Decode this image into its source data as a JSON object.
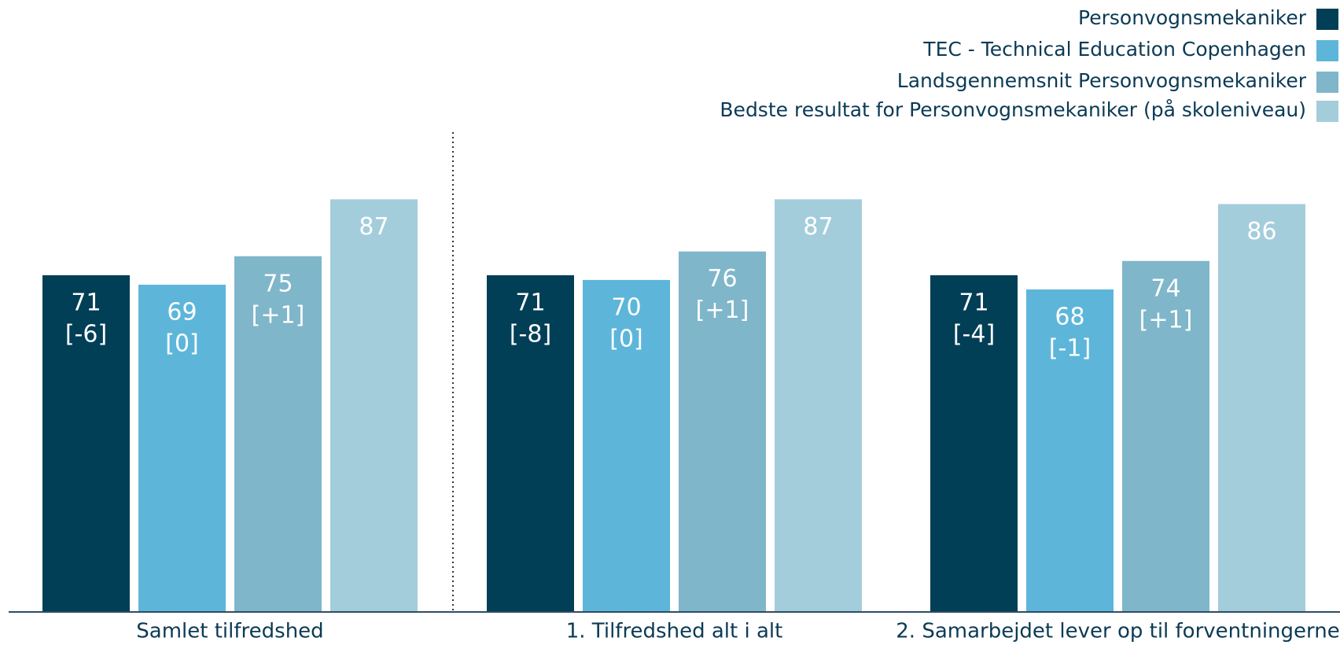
{
  "chart_data": {
    "type": "bar",
    "categories": [
      "Samlet tilfredshed",
      "1. Tilfredshed alt i alt",
      "2. Samarbejdet lever op til forventningerne"
    ],
    "series": [
      {
        "name": "Personvognsmekaniker",
        "color": "#003f56",
        "values": [
          71,
          71,
          71
        ],
        "changes": [
          "[-6]",
          "[-8]",
          "[-4]"
        ]
      },
      {
        "name": "TEC - Technical Education Copenhagen",
        "color": "#5db6da",
        "values": [
          69,
          70,
          68
        ],
        "changes": [
          "[0]",
          "[0]",
          "[-1]"
        ]
      },
      {
        "name": "Landsgennemsnit Personvognsmekaniker",
        "color": "#7fb6ca",
        "values": [
          75,
          76,
          74
        ],
        "changes": [
          "[+1]",
          "[+1]",
          "[+1]"
        ]
      },
      {
        "name": "Bedste resultat for Personvognsmekaniker (på skoleniveau)",
        "color": "#a4cddc",
        "values": [
          87,
          87,
          86
        ]
      }
    ],
    "ylim": [
      0,
      100
    ],
    "legend": "top-right"
  }
}
